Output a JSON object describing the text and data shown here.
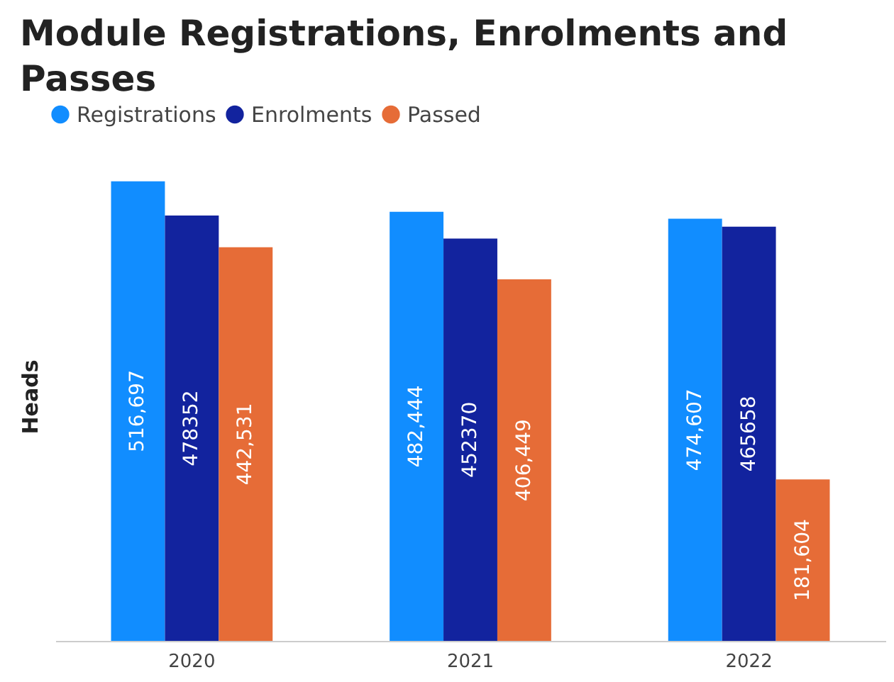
{
  "chart_data": {
    "type": "bar",
    "title": "Module Registrations, Enrolments and Passes",
    "ylabel": "Heads",
    "categories": [
      "2020",
      "2021",
      "2022"
    ],
    "series": [
      {
        "name": "Registrations",
        "color": "#118dff",
        "values": [
          516697,
          482444,
          474607
        ],
        "value_labels": [
          "516,697",
          "482,444",
          "474,607"
        ]
      },
      {
        "name": "Enrolments",
        "color": "#12239e",
        "values": [
          478352,
          452370,
          465658
        ],
        "value_labels": [
          "478352",
          "452370",
          "465658"
        ]
      },
      {
        "name": "Passed",
        "color": "#e66c37",
        "values": [
          442531,
          406449,
          181604
        ],
        "value_labels": [
          "442,531",
          "406,449",
          "181,604"
        ]
      }
    ],
    "legend": "top left",
    "grid": false,
    "tick_labels": "x"
  }
}
